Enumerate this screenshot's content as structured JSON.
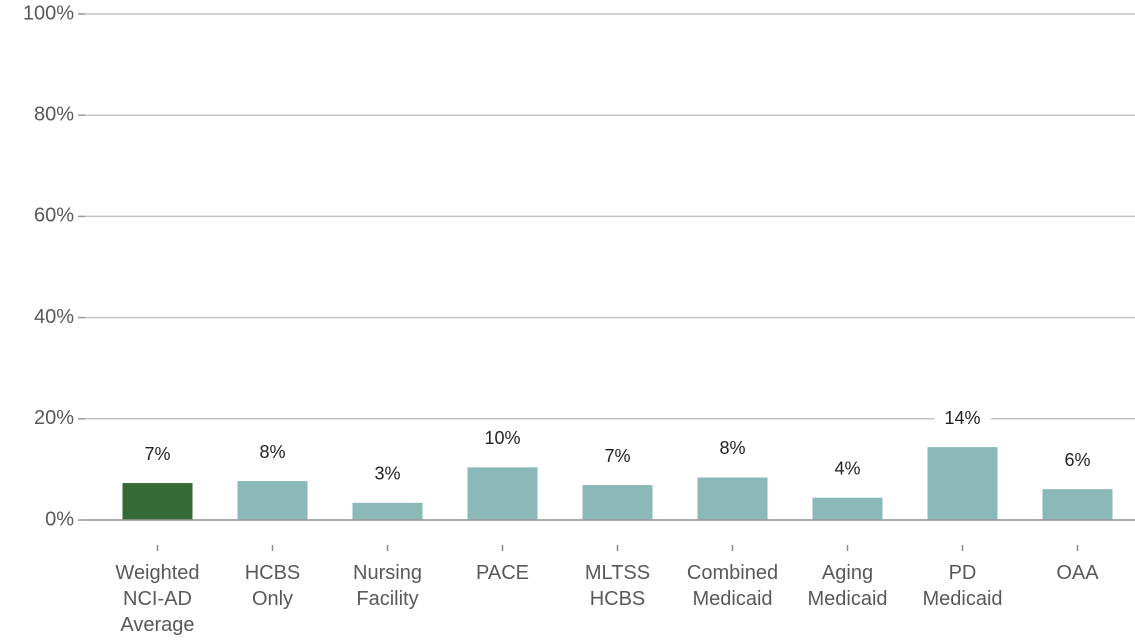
{
  "chart_data": {
    "type": "bar",
    "categories": [
      "Weighted NCI-AD Average",
      "HCBS Only",
      "Nursing Facility",
      "PACE",
      "MLTSS HCBS",
      "Combined Medicaid",
      "Aging Medicaid",
      "PD Medicaid",
      "OAA"
    ],
    "values": [
      7.3,
      7.7,
      3.4,
      10.4,
      6.9,
      8.4,
      4.4,
      14.4,
      6.1
    ],
    "value_labels": [
      "7%",
      "8%",
      "3%",
      "10%",
      "7%",
      "8%",
      "4%",
      "14%",
      "6%"
    ],
    "colors": [
      "#356a37",
      "#8bb9b8",
      "#8bb9b8",
      "#8bb9b8",
      "#8bb9b8",
      "#8bb9b8",
      "#8bb9b8",
      "#8bb9b8",
      "#8bb9b8"
    ],
    "ylim": [
      0,
      100
    ],
    "yticks": [
      {
        "value": 0,
        "label": "0%"
      },
      {
        "value": 20,
        "label": "20%"
      },
      {
        "value": 40,
        "label": "40%"
      },
      {
        "value": 60,
        "label": "60%"
      },
      {
        "value": 80,
        "label": "80%"
      },
      {
        "value": 100,
        "label": "100%"
      }
    ],
    "grid": true
  }
}
